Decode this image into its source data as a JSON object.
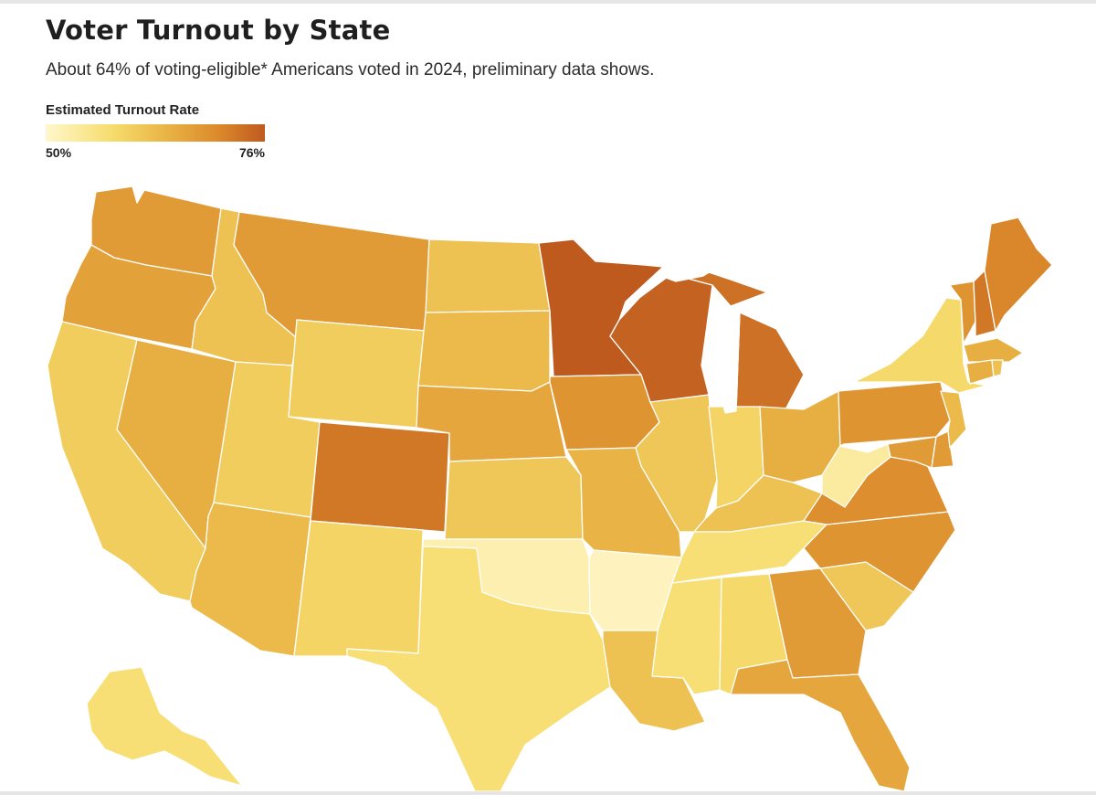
{
  "header": {
    "title": "Voter Turnout by State",
    "subtitle": "About 64% of voting-eligible* Americans voted in 2024, preliminary data shows."
  },
  "legend": {
    "title": "Estimated Turnout Rate",
    "min_label": "50%",
    "max_label": "76%",
    "min_value": 50,
    "max_value": 76,
    "scale_colors": [
      "#fff7cc",
      "#f6dd6e",
      "#e9b445",
      "#dc8b2c",
      "#bf5a1f"
    ]
  },
  "map": {
    "region": "Contiguous United States and Alaska",
    "states": [
      {
        "id": "WA",
        "value": 67
      },
      {
        "id": "OR",
        "value": 66
      },
      {
        "id": "CA",
        "value": 59
      },
      {
        "id": "NV",
        "value": 64
      },
      {
        "id": "ID",
        "value": 61
      },
      {
        "id": "MT",
        "value": 67
      },
      {
        "id": "WY",
        "value": 59
      },
      {
        "id": "UT",
        "value": 59
      },
      {
        "id": "AZ",
        "value": 62
      },
      {
        "id": "CO",
        "value": 72
      },
      {
        "id": "NM",
        "value": 58
      },
      {
        "id": "ND",
        "value": 61
      },
      {
        "id": "SD",
        "value": 62
      },
      {
        "id": "NE",
        "value": 65
      },
      {
        "id": "KS",
        "value": 60
      },
      {
        "id": "OK",
        "value": 52
      },
      {
        "id": "TX",
        "value": 56
      },
      {
        "id": "MN",
        "value": 76
      },
      {
        "id": "IA",
        "value": 68
      },
      {
        "id": "MO",
        "value": 63
      },
      {
        "id": "AR",
        "value": 51
      },
      {
        "id": "LA",
        "value": 61
      },
      {
        "id": "WI",
        "value": 75
      },
      {
        "id": "IL",
        "value": 60
      },
      {
        "id": "MI",
        "value": 73
      },
      {
        "id": "IN",
        "value": 58
      },
      {
        "id": "OH",
        "value": 64
      },
      {
        "id": "KY",
        "value": 61
      },
      {
        "id": "TN",
        "value": 56
      },
      {
        "id": "MS",
        "value": 56
      },
      {
        "id": "AL",
        "value": 57
      },
      {
        "id": "GA",
        "value": 67
      },
      {
        "id": "FL",
        "value": 65
      },
      {
        "id": "SC",
        "value": 60
      },
      {
        "id": "NC",
        "value": 68
      },
      {
        "id": "VA",
        "value": 69
      },
      {
        "id": "WV",
        "value": 53
      },
      {
        "id": "PA",
        "value": 68
      },
      {
        "id": "NY",
        "value": 57
      },
      {
        "id": "VT",
        "value": 68
      },
      {
        "id": "NH",
        "value": 72
      },
      {
        "id": "ME",
        "value": 70
      },
      {
        "id": "MA",
        "value": 64
      },
      {
        "id": "CT",
        "value": 64
      },
      {
        "id": "RI",
        "value": 61
      },
      {
        "id": "NJ",
        "value": 62
      },
      {
        "id": "DE",
        "value": 67
      },
      {
        "id": "MD",
        "value": 67
      },
      {
        "id": "AK",
        "value": 56
      }
    ]
  }
}
